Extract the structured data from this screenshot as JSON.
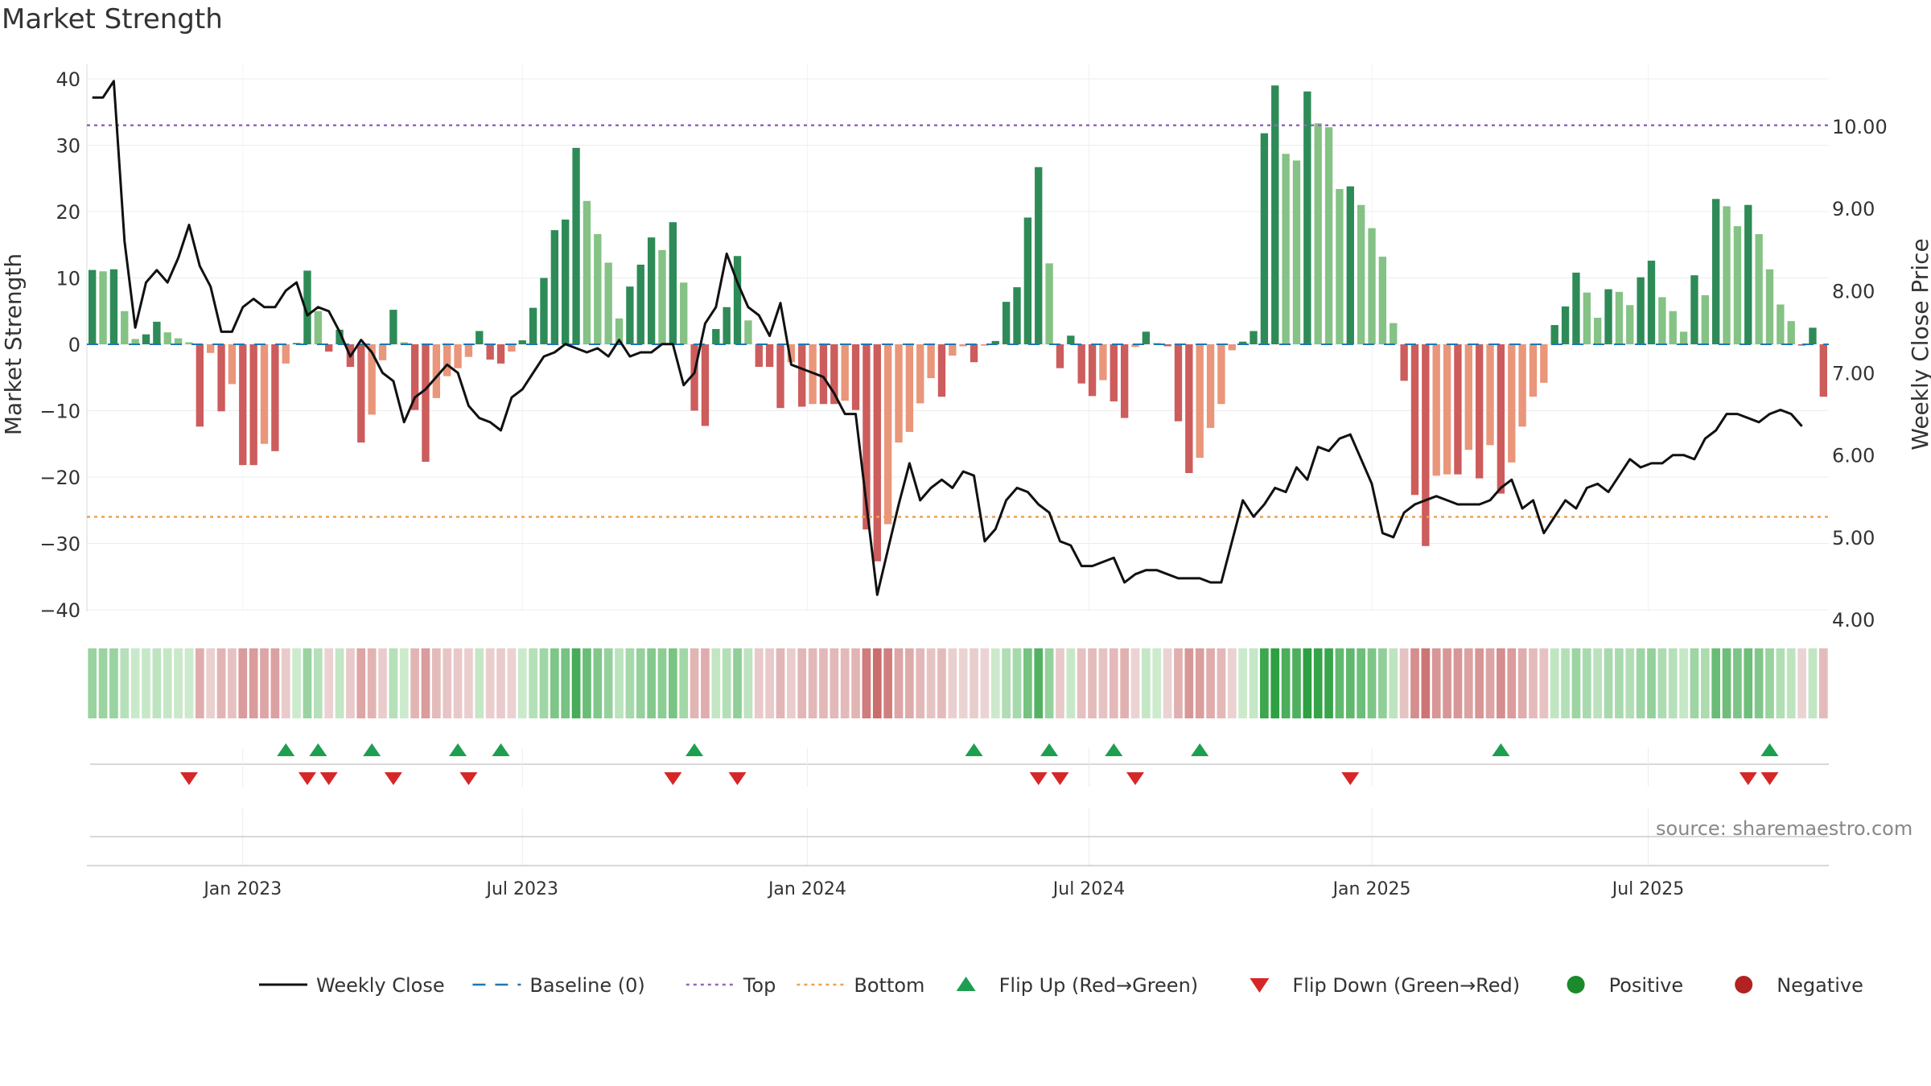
{
  "chart_data": {
    "type": "bar",
    "title": "Market Strength",
    "source": "source: sharemaestro.com",
    "ylabel_left": "Market Strength",
    "ylabel_right": "Weekly Close Price",
    "ylim_left": [
      -40,
      40
    ],
    "ylim_right": [
      4.0,
      10.5
    ],
    "left_ticks": [
      "40",
      "30",
      "20",
      "10",
      "0",
      "−10",
      "−20",
      "−30",
      "−40"
    ],
    "left_tick_values": [
      40,
      30,
      20,
      10,
      0,
      -10,
      -20,
      -30,
      -40
    ],
    "right_ticks": [
      "10.00",
      "9.00",
      "8.00",
      "7.00",
      "6.00",
      "5.00",
      "4.00"
    ],
    "right_tick_values": [
      10,
      9,
      8,
      7,
      6,
      5,
      4
    ],
    "x_ticks": [
      {
        "label": "Jan 2023",
        "week": 14
      },
      {
        "label": "Jul 2023",
        "week": 40
      },
      {
        "label": "Jan 2024",
        "week": 66.5
      },
      {
        "label": "Jul 2024",
        "week": 92.7
      },
      {
        "label": "Jan 2025",
        "week": 119
      },
      {
        "label": "Jul 2025",
        "week": 144.7
      }
    ],
    "top_line": 33,
    "bottom_line": -26,
    "strength": [
      11.2,
      11.0,
      11.3,
      5.0,
      0.8,
      1.5,
      3.4,
      1.8,
      0.9,
      0.3,
      -12.4,
      -1.3,
      -10.1,
      -6.0,
      -18.2,
      -18.2,
      -15.0,
      -16.1,
      -2.9,
      0.2,
      11.1,
      5.0,
      -1.1,
      2.2,
      -3.4,
      -14.8,
      -10.6,
      -2.4,
      5.2,
      0.3,
      -9.9,
      -17.7,
      -8.1,
      -4.8,
      -3.6,
      -1.9,
      2.0,
      -2.3,
      -2.9,
      -1.1,
      0.6,
      5.5,
      10.0,
      17.2,
      18.8,
      29.6,
      21.6,
      16.6,
      12.3,
      3.9,
      8.7,
      12.0,
      16.1,
      14.2,
      18.4,
      9.3,
      -10.0,
      -12.3,
      2.3,
      5.6,
      13.3,
      3.6,
      -3.4,
      -3.4,
      -9.6,
      -2.7,
      -9.4,
      -9.0,
      -9.0,
      -9.0,
      -8.5,
      -9.9,
      -27.9,
      -32.7,
      -27.1,
      -14.8,
      -13.2,
      -8.9,
      -5.1,
      -7.9,
      -1.7,
      -0.3,
      -2.7,
      -0.2,
      0.5,
      6.4,
      8.6,
      19.1,
      26.7,
      12.2,
      -3.6,
      1.3,
      -5.9,
      -7.8,
      -5.4,
      -8.6,
      -11.1,
      -0.4,
      1.9,
      0.2,
      -0.3,
      -11.6,
      -19.4,
      -17.1,
      -12.6,
      -9.0,
      -0.9,
      0.4,
      2.0,
      31.8,
      39.0,
      28.7,
      27.7,
      38.1,
      33.3,
      32.7,
      23.4,
      23.8,
      21.0,
      17.5,
      13.2,
      3.2,
      -5.5,
      -22.7,
      -30.4,
      -19.8,
      -19.6,
      -19.6,
      -15.9,
      -20.2,
      -15.2,
      -22.5,
      -17.8,
      -12.4,
      -7.9,
      -5.8,
      2.9,
      5.7,
      10.8,
      7.8,
      4.0,
      8.3,
      7.9,
      5.9,
      10.1,
      12.6,
      7.1,
      5.0,
      1.9,
      10.4,
      7.4,
      21.9,
      20.8,
      17.8,
      21.0,
      16.6,
      11.3,
      6.0,
      3.5,
      -0.2,
      2.5,
      -7.9
    ],
    "price": [
      10.35,
      10.35,
      10.55,
      8.6,
      7.55,
      8.1,
      8.25,
      8.1,
      8.4,
      8.8,
      8.3,
      8.05,
      7.5,
      7.5,
      7.8,
      7.9,
      7.8,
      7.8,
      8.0,
      8.1,
      7.7,
      7.8,
      7.75,
      7.5,
      7.2,
      7.4,
      7.25,
      7.0,
      6.9,
      6.4,
      6.7,
      6.8,
      6.95,
      7.1,
      7.0,
      6.6,
      6.45,
      6.4,
      6.3,
      6.7,
      6.8,
      7.0,
      7.2,
      7.25,
      7.35,
      7.3,
      7.25,
      7.3,
      7.2,
      7.4,
      7.2,
      7.25,
      7.25,
      7.35,
      7.35,
      6.85,
      7.0,
      7.6,
      7.8,
      8.45,
      8.1,
      7.8,
      7.7,
      7.45,
      7.85,
      7.1,
      7.05,
      7.0,
      6.95,
      6.75,
      6.5,
      6.5,
      5.4,
      4.3,
      4.85,
      5.4,
      5.9,
      5.45,
      5.6,
      5.7,
      5.6,
      5.8,
      5.75,
      4.95,
      5.1,
      5.45,
      5.6,
      5.55,
      5.4,
      5.3,
      4.95,
      4.9,
      4.65,
      4.65,
      4.7,
      4.75,
      4.45,
      4.55,
      4.6,
      4.6,
      4.55,
      4.5,
      4.5,
      4.5,
      4.45,
      4.45,
      4.95,
      5.45,
      5.25,
      5.4,
      5.6,
      5.55,
      5.85,
      5.7,
      6.1,
      6.05,
      6.2,
      6.25,
      5.95,
      5.65,
      5.05,
      5.0,
      5.3,
      5.4,
      5.45,
      5.5,
      5.45,
      5.4,
      5.4,
      5.4,
      5.45,
      5.6,
      5.7,
      5.35,
      5.45,
      5.05,
      5.25,
      5.45,
      5.35,
      5.6,
      5.65,
      5.55,
      5.75,
      5.95,
      5.85,
      5.9,
      5.9,
      6.0,
      6.0,
      5.95,
      6.2,
      6.3,
      6.5,
      6.5,
      6.45,
      6.4,
      6.5,
      6.55,
      6.5,
      6.35
    ],
    "flip_up_weeks": [
      18,
      21,
      26,
      34,
      38,
      56,
      82,
      89,
      95,
      103,
      131,
      156
    ],
    "flip_down_weeks": [
      9,
      20,
      22,
      28,
      35,
      54,
      60,
      88,
      90,
      97,
      117,
      154,
      156
    ],
    "legend": [
      {
        "name": "Weekly Close",
        "kind": "line",
        "color": "#111111"
      },
      {
        "name": "Baseline (0)",
        "kind": "dash",
        "color": "#1f77b4"
      },
      {
        "name": "Top",
        "kind": "dot",
        "color": "#9467bd"
      },
      {
        "name": "Bottom",
        "kind": "dot",
        "color": "#f0a050"
      },
      {
        "name": "Flip Up (Red→Green)",
        "kind": "tri-up",
        "color": "#1e9e50"
      },
      {
        "name": "Flip Down (Green→Red)",
        "kind": "tri-down",
        "color": "#d62728"
      },
      {
        "name": "Positive",
        "kind": "circle",
        "color": "#1a8a2a"
      },
      {
        "name": "Negative",
        "kind": "circle",
        "color": "#b22222"
      }
    ],
    "colors": {
      "pos_strong": "#2e8b57",
      "pos_weak": "#85c285",
      "neg_strong": "#cd5c5c",
      "neg_weak": "#e9967a",
      "top": "#9467bd",
      "bottom": "#f0a050",
      "baseline": "#1f77b4",
      "flip_up": "#1e9e50",
      "flip_down": "#d62728"
    }
  }
}
